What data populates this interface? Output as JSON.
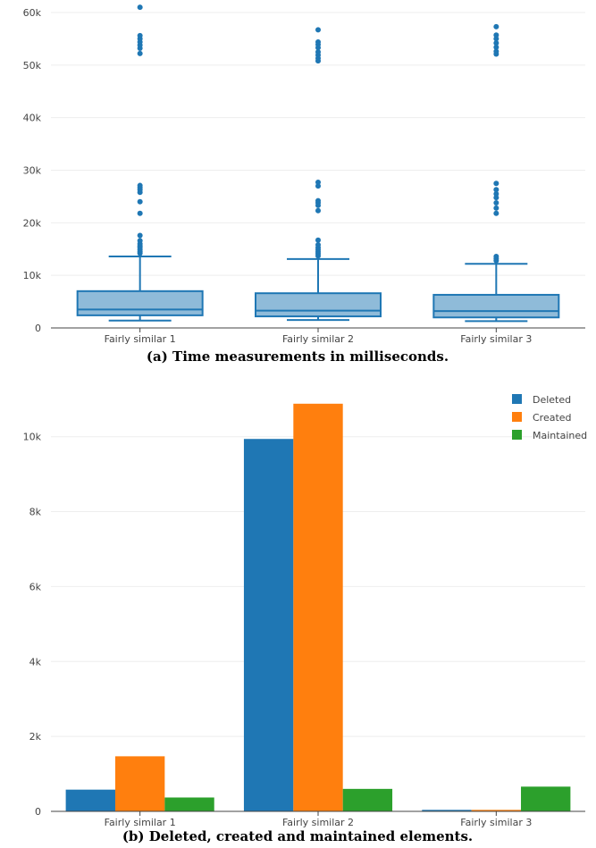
{
  "figure": {
    "caption_a": "(a)  Time measurements in milliseconds.",
    "caption_b": "(b)  Deleted, created and maintained elements."
  },
  "chart_data": [
    {
      "type": "box",
      "title": "",
      "xlabel": "",
      "ylabel": "",
      "categories": [
        "Fairly similar 1",
        "Fairly similar 2",
        "Fairly similar 3"
      ],
      "ylim": [
        0,
        60000
      ],
      "yticks": [
        0,
        10000,
        20000,
        30000,
        40000,
        50000,
        60000
      ],
      "ytick_labels": [
        "0",
        "10k",
        "20k",
        "30k",
        "40k",
        "50k",
        "60k"
      ],
      "grid": true,
      "color": "#1f77b4",
      "boxes": [
        {
          "name": "Fairly similar 1",
          "lower_whisker": 1400,
          "q1": 2400,
          "median": 3500,
          "q3": 7000,
          "upper_whisker": 13600,
          "outliers": [
            14200,
            14500,
            14900,
            15300,
            15600,
            16000,
            16600,
            17600,
            21800,
            24000,
            25800,
            26300,
            26700,
            27100,
            52200,
            53200,
            53800,
            54400,
            55000,
            55600,
            61000
          ]
        },
        {
          "name": "Fairly similar 2",
          "lower_whisker": 1500,
          "q1": 2200,
          "median": 3300,
          "q3": 6600,
          "upper_whisker": 13100,
          "outliers": [
            13700,
            14100,
            14500,
            14900,
            15300,
            15800,
            16700,
            22300,
            23300,
            23800,
            24200,
            27000,
            27700,
            50800,
            51300,
            51900,
            52500,
            53300,
            53900,
            54400,
            56700
          ]
        },
        {
          "name": "Fairly similar 3",
          "lower_whisker": 1300,
          "q1": 2000,
          "median": 3200,
          "q3": 6300,
          "upper_whisker": 12200,
          "outliers": [
            12800,
            13200,
            13600,
            21800,
            22800,
            23800,
            24800,
            25500,
            26300,
            27500,
            52100,
            52600,
            53400,
            54200,
            55000,
            55700,
            57300
          ]
        }
      ]
    },
    {
      "type": "bar",
      "title": "",
      "xlabel": "",
      "ylabel": "",
      "categories": [
        "Fairly similar 1",
        "Fairly similar 2",
        "Fairly similar 3"
      ],
      "ylim": [
        0,
        11400
      ],
      "yticks": [
        0,
        2000,
        4000,
        6000,
        8000,
        10000
      ],
      "ytick_labels": [
        "0",
        "2k",
        "4k",
        "6k",
        "8k",
        "10k"
      ],
      "grid": true,
      "legend_position": "top-right",
      "series": [
        {
          "name": "Deleted",
          "color": "#1f77b4",
          "values": [
            580,
            9940,
            40
          ]
        },
        {
          "name": "Created",
          "color": "#ff7f0e",
          "values": [
            1470,
            10880,
            40
          ]
        },
        {
          "name": "Maintained",
          "color": "#2ca02c",
          "values": [
            370,
            600,
            660
          ]
        }
      ]
    }
  ]
}
